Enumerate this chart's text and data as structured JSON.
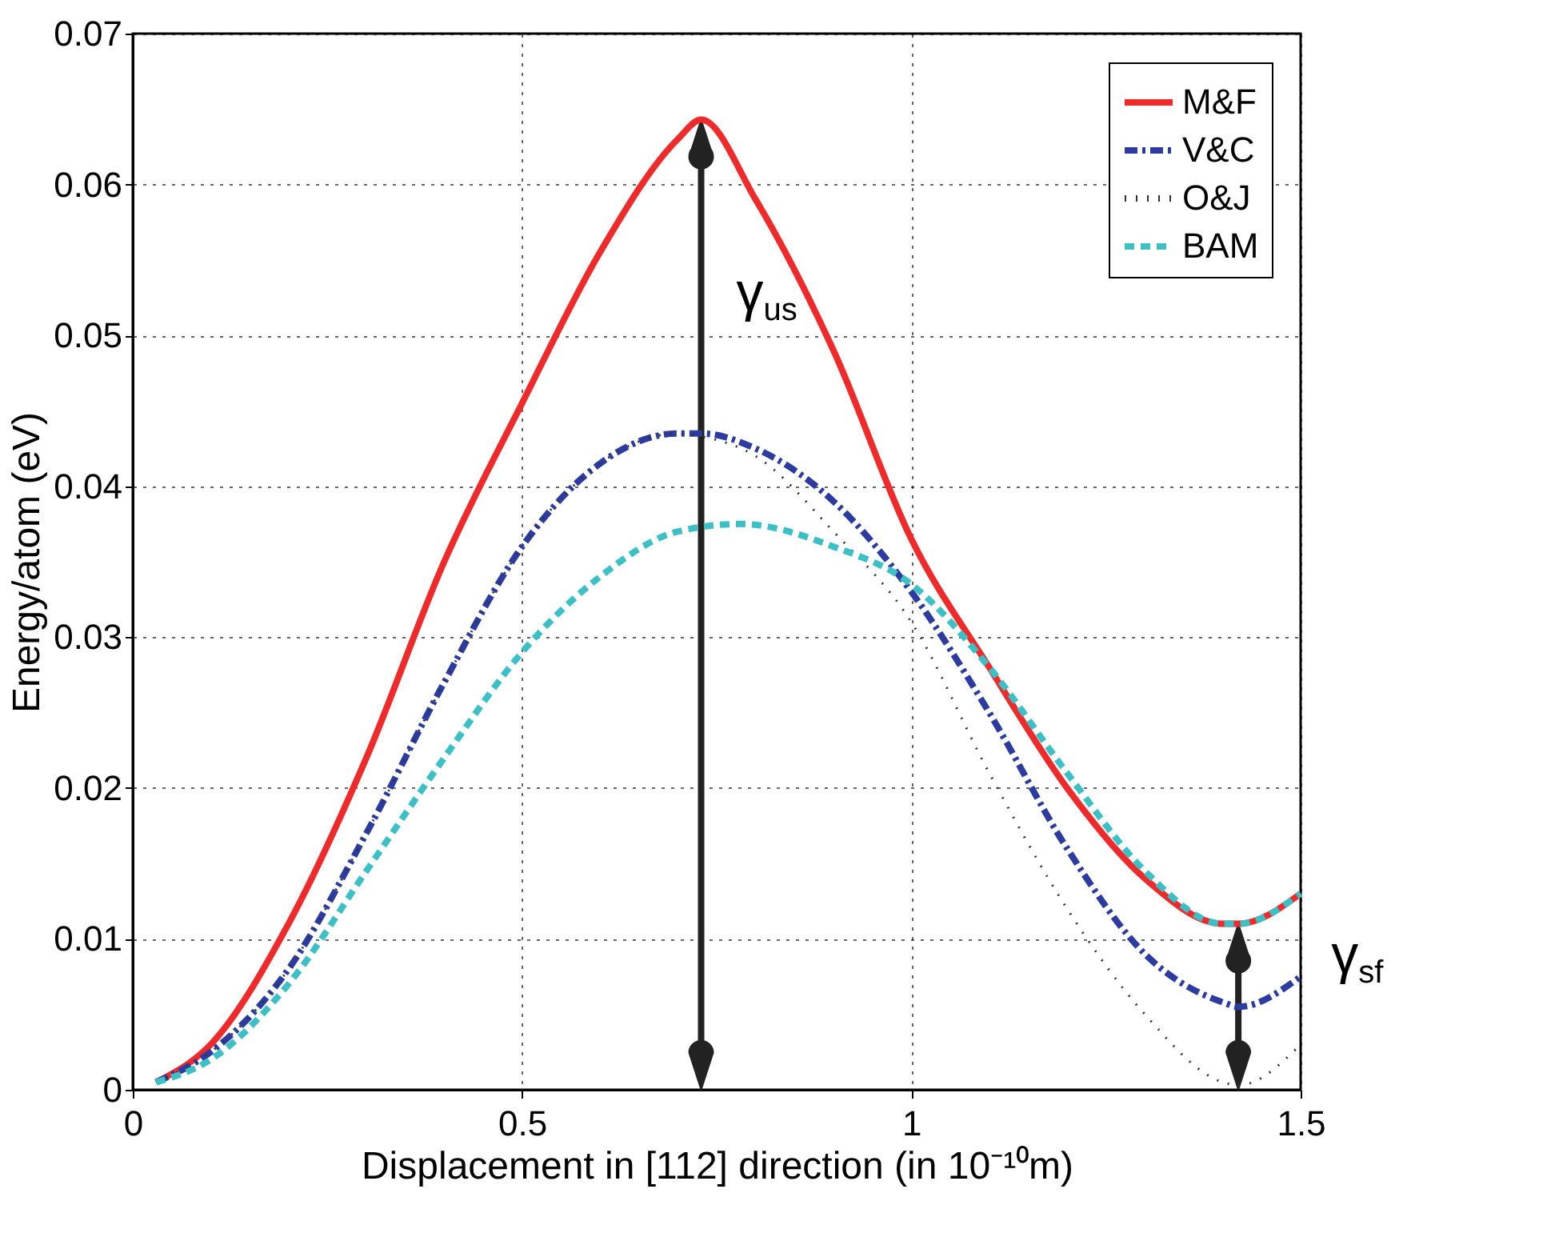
{
  "chart_data": {
    "type": "line",
    "xlabel": "Displacement in [112] direction (in 10⁻¹⁰m)",
    "ylabel": "Energy/atom (eV)",
    "xlim": [
      0,
      1.5
    ],
    "xticks": [
      0,
      0.5,
      1,
      1.5
    ],
    "ylim": [
      0,
      0.07
    ],
    "yticks": [
      0,
      0.01,
      0.02,
      0.03,
      0.04,
      0.05,
      0.06,
      0.07
    ],
    "grid": true,
    "legend": "top right",
    "series": [
      {
        "name": "M&F",
        "color": "#ee2a2a",
        "line_style": "solid",
        "x": [
          0.03,
          0.1,
          0.2,
          0.3,
          0.4,
          0.5,
          0.6,
          0.7,
          0.73,
          0.8,
          0.9,
          1.0,
          1.1,
          1.2,
          1.3,
          1.4,
          1.42,
          1.5
        ],
        "values": [
          0.0005,
          0.003,
          0.011,
          0.022,
          0.035,
          0.0455,
          0.0555,
          0.063,
          0.0643,
          0.059,
          0.049,
          0.0365,
          0.028,
          0.02,
          0.014,
          0.011,
          0.011,
          0.013
        ]
      },
      {
        "name": "V&C",
        "color": "#2b3ba0",
        "line_style": "dashdot",
        "x": [
          0.03,
          0.1,
          0.2,
          0.3,
          0.4,
          0.5,
          0.6,
          0.7,
          0.73,
          0.8,
          0.9,
          1.0,
          1.1,
          1.2,
          1.3,
          1.4,
          1.42,
          1.5
        ],
        "values": [
          0.0005,
          0.0025,
          0.008,
          0.017,
          0.027,
          0.036,
          0.0415,
          0.0435,
          0.0435,
          0.0425,
          0.039,
          0.033,
          0.025,
          0.016,
          0.009,
          0.0058,
          0.0055,
          0.0075
        ]
      },
      {
        "name": "O&J",
        "color": "#333333",
        "line_style": "dotted",
        "x": [
          0.03,
          0.1,
          0.2,
          0.3,
          0.4,
          0.5,
          0.6,
          0.7,
          0.73,
          0.8,
          0.9,
          1.0,
          1.1,
          1.2,
          1.3,
          1.4,
          1.42,
          1.5
        ],
        "values": [
          0.0005,
          0.0025,
          0.008,
          0.017,
          0.027,
          0.036,
          0.0415,
          0.0435,
          0.0433,
          0.042,
          0.037,
          0.031,
          0.021,
          0.012,
          0.005,
          0.0005,
          0.0003,
          0.003
        ]
      },
      {
        "name": "BAM",
        "color": "#3cc0c6",
        "line_style": "dashed",
        "x": [
          0.03,
          0.1,
          0.2,
          0.3,
          0.4,
          0.5,
          0.6,
          0.7,
          0.78,
          0.9,
          1.0,
          1.1,
          1.2,
          1.3,
          1.4,
          1.42,
          1.5
        ],
        "values": [
          0.0005,
          0.002,
          0.007,
          0.0145,
          0.022,
          0.029,
          0.034,
          0.037,
          0.0375,
          0.036,
          0.0335,
          0.028,
          0.021,
          0.0145,
          0.011,
          0.011,
          0.013
        ]
      }
    ],
    "annotations": [
      {
        "text": "γ$_{us}$",
        "x": 0.73,
        "y": 0.0643
      },
      {
        "text": "γ$_{sf}$",
        "x": 1.42,
        "y": 0.011
      }
    ]
  }
}
